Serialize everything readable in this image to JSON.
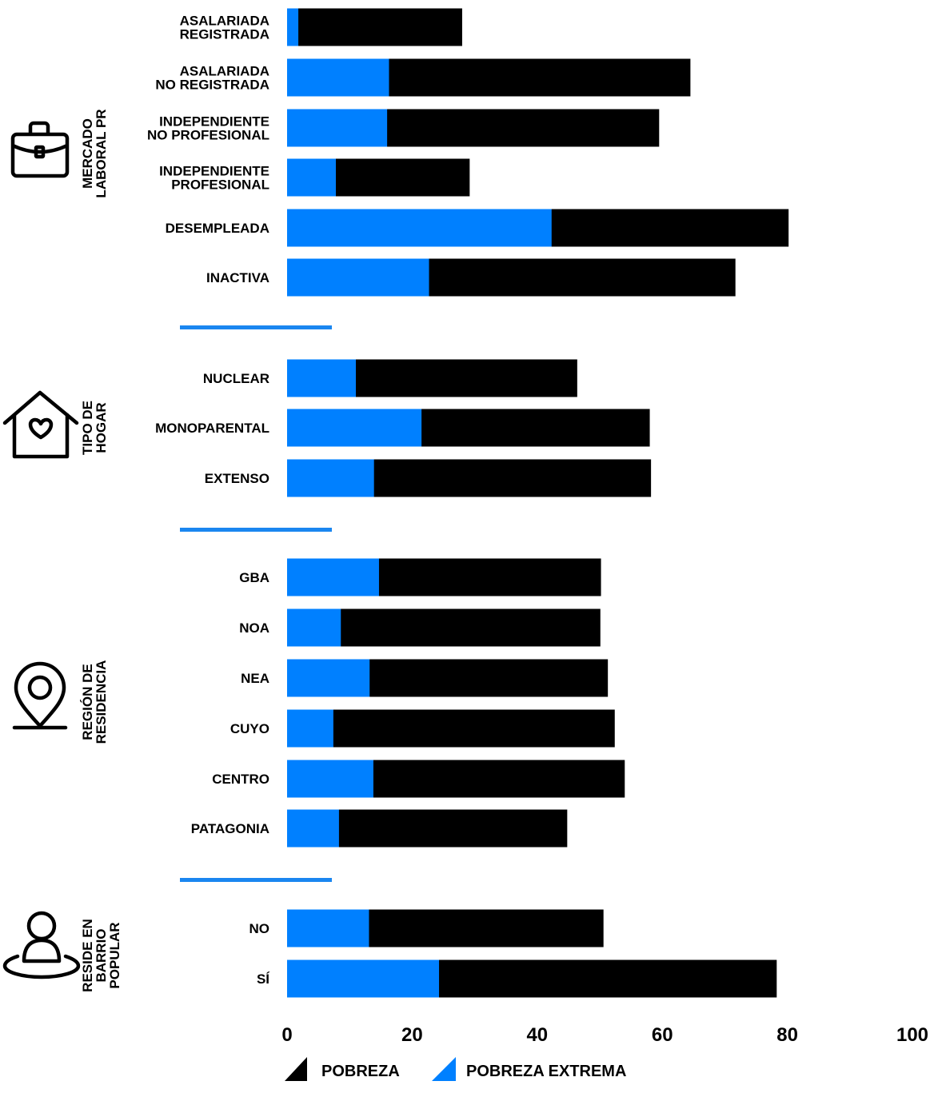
{
  "colors": {
    "pobreza": "#000000",
    "pobreza_extrema": "#0080ff",
    "separator": "#1a86f0",
    "icon": "#000000"
  },
  "chart_data": {
    "type": "bar",
    "orientation": "horizontal",
    "stacking": "overlay",
    "xlim": [
      0,
      100
    ],
    "xticks": [
      "0",
      "20",
      "40",
      "60",
      "80",
      "100"
    ],
    "xlabel": "",
    "ylabel": "",
    "title": "",
    "grid": false,
    "legend": {
      "placement": "bottom-center",
      "entries": [
        "POBREZA",
        "POBREZA EXTREMA"
      ]
    },
    "groups": [
      {
        "label_lines": [
          "MERCADO",
          "LABORAL PR"
        ],
        "icon": "briefcase-icon",
        "rows": [
          {
            "label_lines": [
              "ASALARIADA",
              "REGISTRADA"
            ],
            "pobreza": 28,
            "pobreza_extrema": 1.8
          },
          {
            "label_lines": [
              "ASALARIADA",
              "NO REGISTRADA"
            ],
            "pobreza": 64.5,
            "pobreza_extrema": 16.3
          },
          {
            "label_lines": [
              "INDEPENDIENTE",
              "NO PROFESIONAL"
            ],
            "pobreza": 59.5,
            "pobreza_extrema": 16
          },
          {
            "label_lines": [
              "INDEPENDIENTE",
              "PROFESIONAL"
            ],
            "pobreza": 29.2,
            "pobreza_extrema": 7.8
          },
          {
            "label_lines": [
              "DESEMPLEADA"
            ],
            "pobreza": 80.2,
            "pobreza_extrema": 42.3
          },
          {
            "label_lines": [
              "INACTIVA"
            ],
            "pobreza": 71.7,
            "pobreza_extrema": 22.7
          }
        ]
      },
      {
        "label_lines": [
          "TIPO DE",
          "HOGAR"
        ],
        "icon": "home-heart-icon",
        "rows": [
          {
            "label_lines": [
              "NUCLEAR"
            ],
            "pobreza": 46.4,
            "pobreza_extrema": 11
          },
          {
            "label_lines": [
              "MONOPARENTAL"
            ],
            "pobreza": 58,
            "pobreza_extrema": 21.5
          },
          {
            "label_lines": [
              "EXTENSO"
            ],
            "pobreza": 58.2,
            "pobreza_extrema": 13.9
          }
        ]
      },
      {
        "label_lines": [
          "REGIÓN DE",
          "RESIDENCIA"
        ],
        "icon": "map-pin-icon",
        "rows": [
          {
            "label_lines": [
              "GBA"
            ],
            "pobreza": 50.2,
            "pobreza_extrema": 14.7
          },
          {
            "label_lines": [
              "NOA"
            ],
            "pobreza": 50.1,
            "pobreza_extrema": 8.6
          },
          {
            "label_lines": [
              "NEA"
            ],
            "pobreza": 51.3,
            "pobreza_extrema": 13.2
          },
          {
            "label_lines": [
              "CUYO"
            ],
            "pobreza": 52.4,
            "pobreza_extrema": 7.4
          },
          {
            "label_lines": [
              "CENTRO"
            ],
            "pobreza": 54,
            "pobreza_extrema": 13.8
          },
          {
            "label_lines": [
              "PATAGONIA"
            ],
            "pobreza": 44.8,
            "pobreza_extrema": 8.3
          }
        ]
      },
      {
        "label_lines": [
          "RESIDE EN",
          "BARRIO",
          "POPULAR"
        ],
        "icon": "person-pin-icon",
        "rows": [
          {
            "label_lines": [
              "NO"
            ],
            "pobreza": 50.6,
            "pobreza_extrema": 13.1
          },
          {
            "label_lines": [
              "SÍ"
            ],
            "pobreza": 78.3,
            "pobreza_extrema": 24.3
          }
        ]
      }
    ]
  }
}
